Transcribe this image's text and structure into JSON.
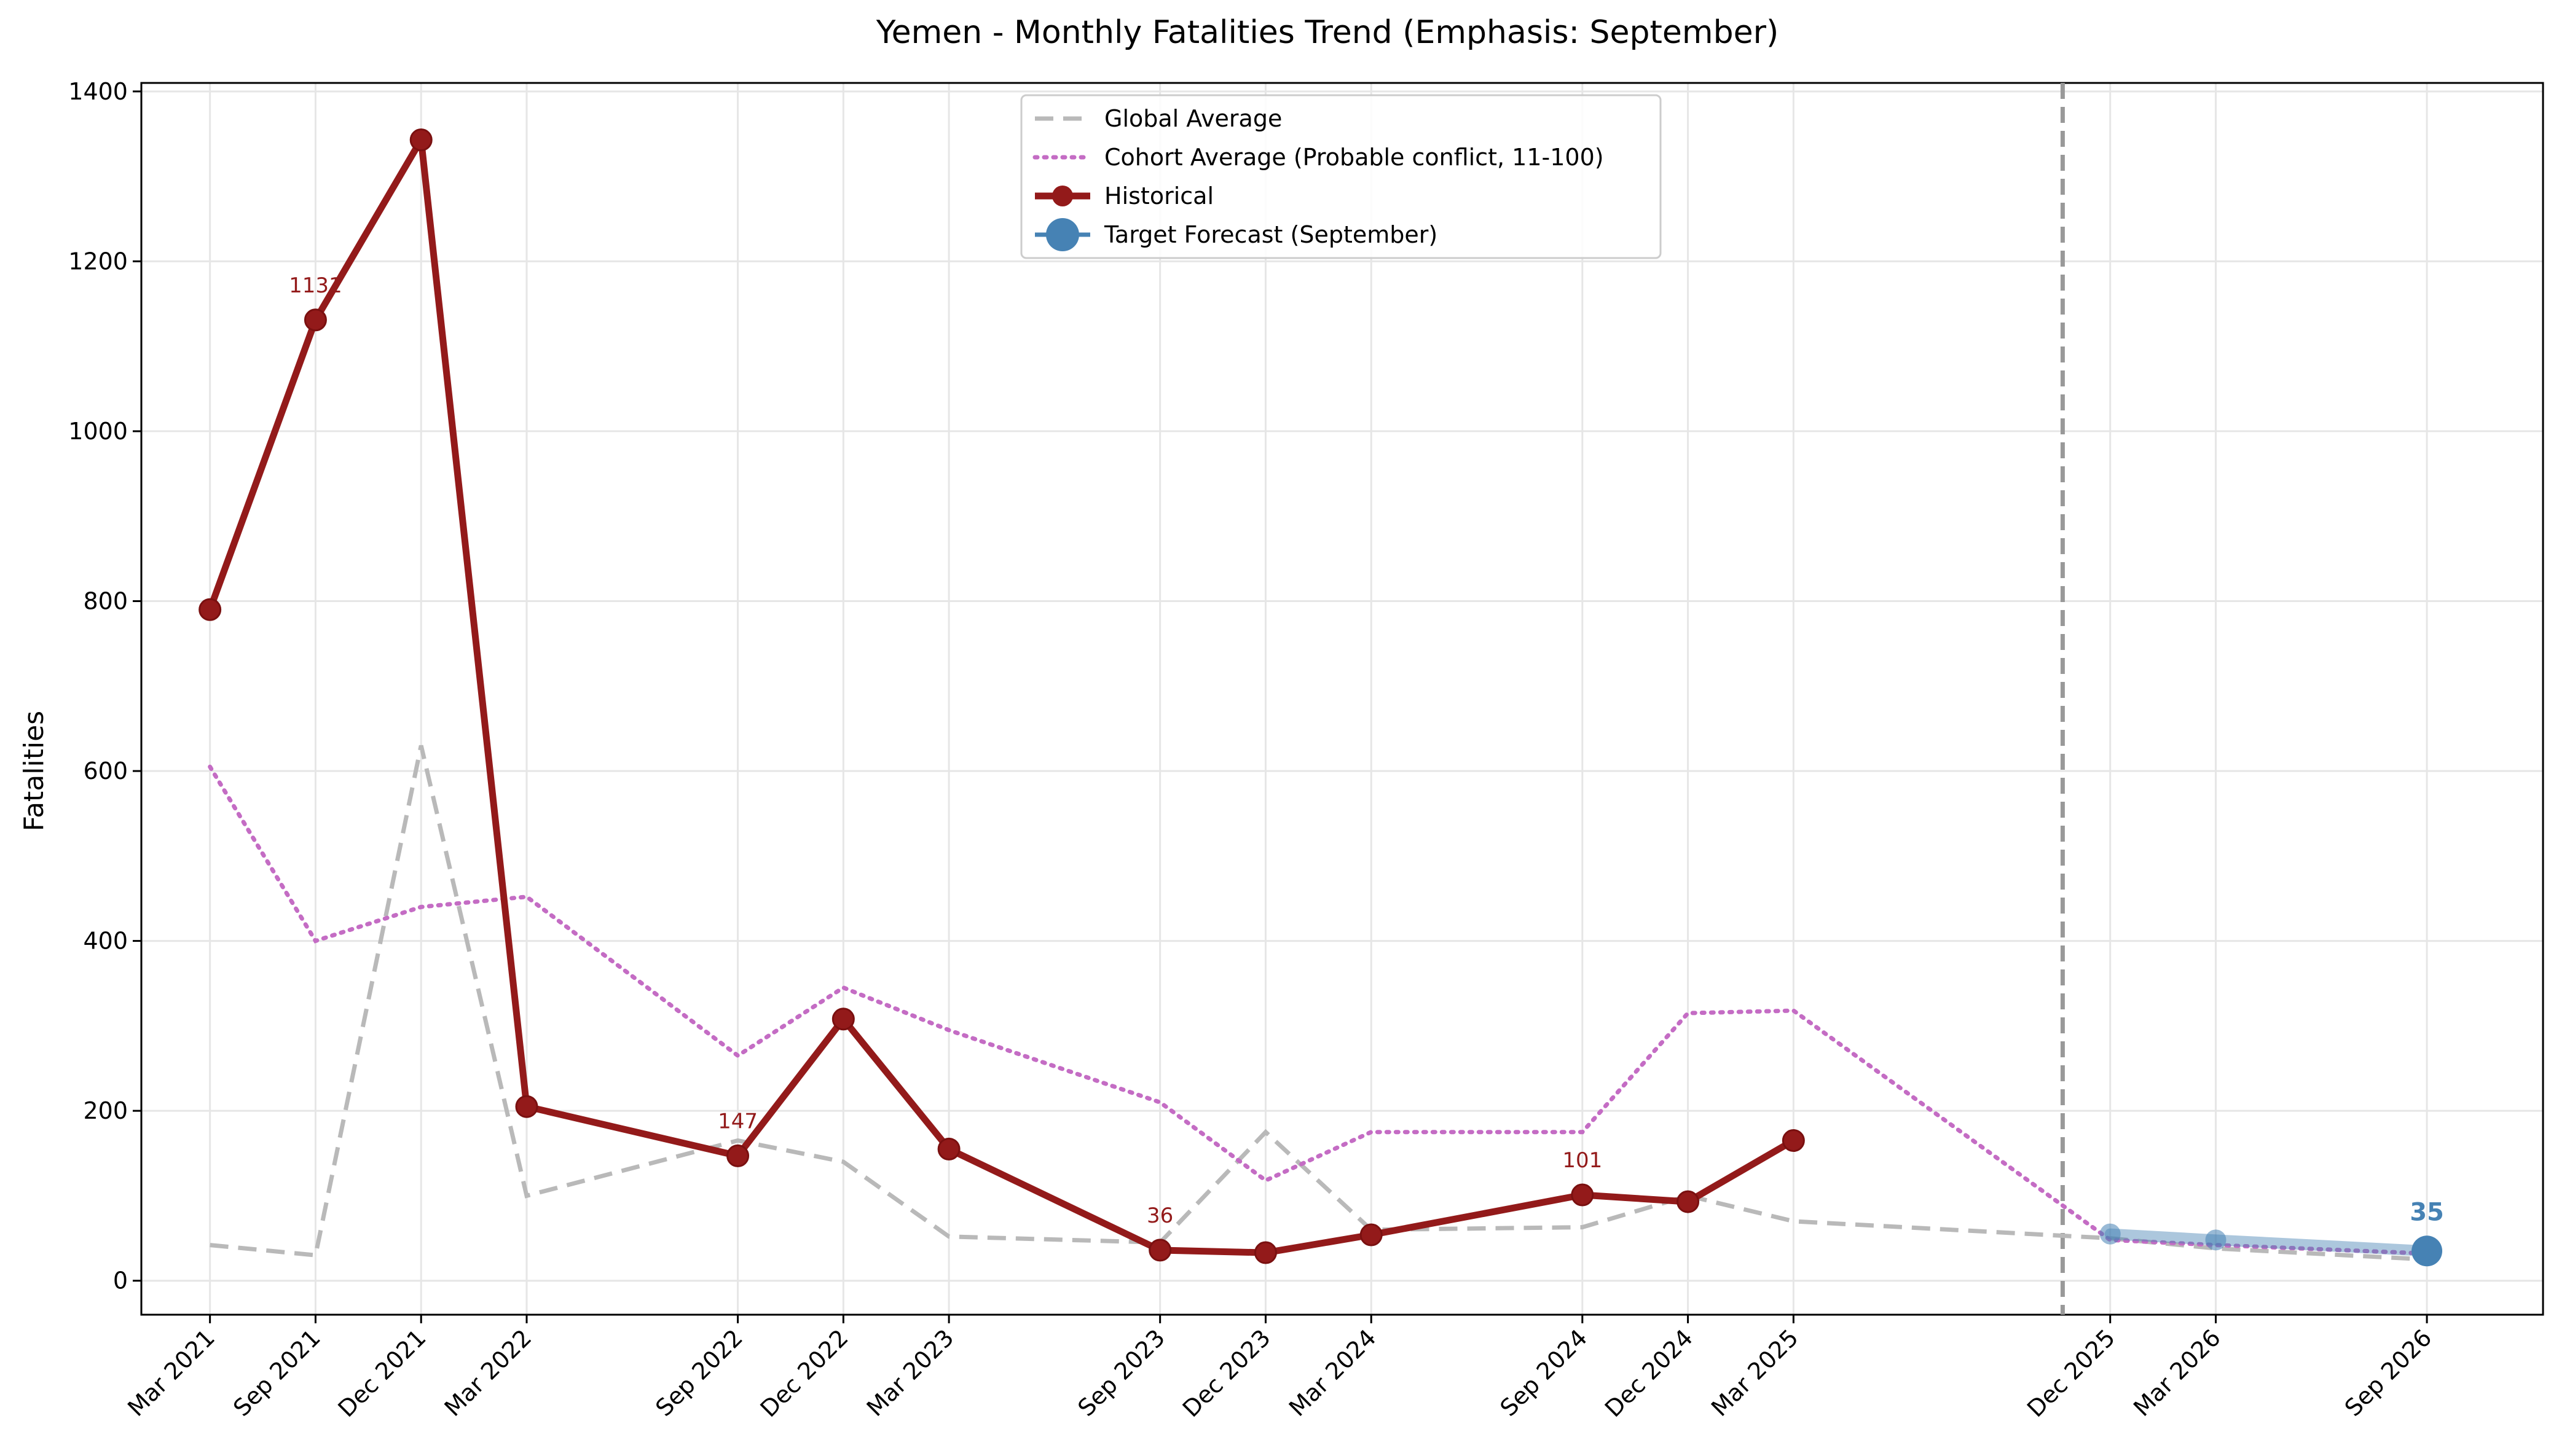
{
  "chart_data": {
    "type": "line",
    "title": "Yemen - Monthly Fatalities Trend (Emphasis: September)",
    "ylabel": "Fatalities",
    "xlabel": "",
    "ylim": [
      -40,
      1410
    ],
    "yticks": [
      0,
      200,
      400,
      600,
      800,
      1000,
      1200,
      1400
    ],
    "grid": true,
    "legend_position": "top-center",
    "categories": [
      "Mar 2021",
      "Sep 2021",
      "Dec 2021",
      "Mar 2022",
      "Sep 2022",
      "Dec 2022",
      "Mar 2023",
      "Sep 2023",
      "Dec 2023",
      "Mar 2024",
      "Sep 2024",
      "Dec 2024",
      "Mar 2025",
      "Dec 2025",
      "Mar 2026",
      "Sep 2026"
    ],
    "x_index": [
      0,
      1,
      2,
      3,
      5,
      6,
      7,
      9,
      10,
      11,
      13,
      14,
      15,
      18,
      19,
      21
    ],
    "forecast_divider_index": 17.55,
    "series": [
      {
        "name": "Global Average",
        "style": "dashed",
        "color": "#b9b9b9",
        "points": [
          [
            0,
            42
          ],
          [
            1,
            30
          ],
          [
            2,
            630
          ],
          [
            3,
            100
          ],
          [
            5,
            165
          ],
          [
            6,
            140
          ],
          [
            7,
            52
          ],
          [
            9,
            45
          ],
          [
            10,
            175
          ],
          [
            11,
            60
          ],
          [
            13,
            63
          ],
          [
            14,
            100
          ],
          [
            15,
            70
          ],
          [
            18,
            50
          ],
          [
            19,
            38
          ],
          [
            21,
            25
          ]
        ]
      },
      {
        "name": "Cohort Average (Probable conflict, 11-100)",
        "style": "dotted",
        "color": "#c46cc4",
        "points": [
          [
            0,
            605
          ],
          [
            1,
            400
          ],
          [
            2,
            440
          ],
          [
            3,
            452
          ],
          [
            5,
            265
          ],
          [
            6,
            345
          ],
          [
            7,
            295
          ],
          [
            9,
            210
          ],
          [
            10,
            118
          ],
          [
            11,
            175
          ],
          [
            13,
            175
          ],
          [
            14,
            315
          ],
          [
            15,
            318
          ],
          [
            18,
            48
          ],
          [
            19,
            42
          ],
          [
            21,
            32
          ]
        ]
      },
      {
        "name": "Historical",
        "style": "solid",
        "color": "#931a1a",
        "points": [
          [
            0,
            790
          ],
          [
            1,
            1131
          ],
          [
            2,
            1343
          ],
          [
            3,
            205
          ],
          [
            5,
            147
          ],
          [
            6,
            308
          ],
          [
            7,
            155
          ],
          [
            9,
            36
          ],
          [
            10,
            33
          ],
          [
            11,
            54
          ],
          [
            13,
            101
          ],
          [
            14,
            93
          ],
          [
            15,
            165
          ]
        ]
      },
      {
        "name": "Target Forecast (September)",
        "style": "solid",
        "color": "#4682b4",
        "points": [
          [
            18,
            55
          ],
          [
            19,
            48
          ],
          [
            21,
            35
          ]
        ]
      }
    ],
    "annotations": [
      {
        "x": 1,
        "y": 1131,
        "text": "1131",
        "color": "#931a1a"
      },
      {
        "x": 5,
        "y": 147,
        "text": "147",
        "color": "#931a1a"
      },
      {
        "x": 9,
        "y": 36,
        "text": "36",
        "color": "#931a1a"
      },
      {
        "x": 13,
        "y": 101,
        "text": "101",
        "color": "#931a1a"
      },
      {
        "x": 21,
        "y": 35,
        "text": "35",
        "color": "#4682b4"
      }
    ]
  }
}
